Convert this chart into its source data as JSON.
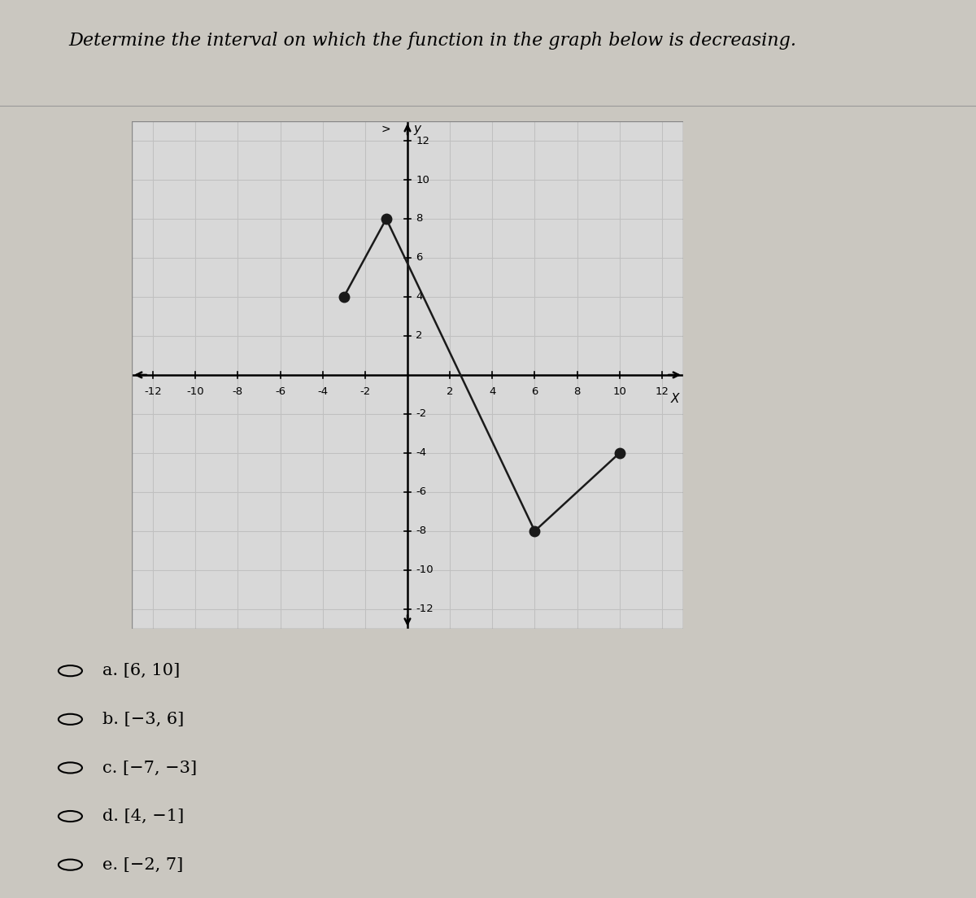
{
  "title": "Determine the interval on which the function in the graph below is decreasing.",
  "graph_points": [
    [
      -3,
      4
    ],
    [
      -1,
      8
    ],
    [
      6,
      -8
    ],
    [
      10,
      -4
    ]
  ],
  "xlim": [
    -13,
    13
  ],
  "ylim": [
    -13,
    13
  ],
  "xtick_vals": [
    -12,
    -10,
    -8,
    -6,
    -4,
    -2,
    2,
    4,
    6,
    8,
    10,
    12
  ],
  "ytick_vals": [
    -12,
    -10,
    -8,
    -6,
    -4,
    -2,
    2,
    4,
    6,
    8,
    10,
    12
  ],
  "line_color": "#1a1a1a",
  "dot_color": "#1a1a1a",
  "line_width": 1.8,
  "grid_color": "#c0c0c0",
  "graph_bg": "#d8d8d8",
  "page_bg": "#cac7c0",
  "border_color": "#aaaaaa",
  "choices": [
    "a. [6, 10]",
    "b. [−3, 6]",
    "c. [−7, −3]",
    "d. [4, −1]",
    "e. [−2, 7]"
  ],
  "title_fontsize": 16,
  "tick_fontsize": 9.5,
  "choice_fontsize": 15
}
